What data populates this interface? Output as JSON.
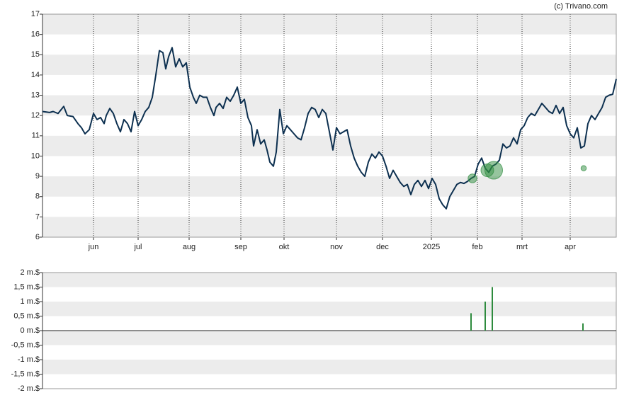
{
  "chart_data": [
    {
      "type": "line",
      "source": "(c) Trivano.com",
      "x": [
        60,
        70,
        75,
        82,
        90,
        95,
        103,
        110,
        115,
        120,
        126,
        132,
        137,
        142,
        147,
        150,
        155,
        160,
        165,
        170,
        175,
        180,
        185,
        190,
        195,
        200,
        205,
        210,
        215,
        220,
        225,
        230,
        234,
        238,
        243,
        248,
        253,
        258,
        263,
        268,
        273,
        277,
        282,
        287,
        292,
        297,
        302,
        305,
        310,
        315,
        320,
        325,
        330,
        335,
        340,
        345,
        350,
        355,
        358,
        363,
        368,
        373,
        377,
        381,
        386,
        390,
        395,
        400,
        405,
        410,
        415,
        420,
        425,
        430,
        435,
        440,
        445,
        450,
        455,
        460,
        465,
        470,
        475,
        480,
        485,
        490,
        495,
        500,
        505,
        510,
        515,
        520,
        525,
        530,
        535,
        540,
        545,
        550,
        555,
        560,
        565,
        570,
        575,
        580,
        585,
        590,
        595,
        600,
        605,
        610,
        615,
        620,
        625,
        630,
        635,
        640,
        645,
        650,
        655,
        660,
        665,
        670,
        675,
        680,
        685,
        690,
        695,
        700,
        705,
        710,
        715,
        720,
        725,
        730,
        735,
        740,
        745,
        750,
        755,
        760,
        765,
        770,
        775,
        780,
        785,
        790,
        795,
        800,
        805,
        810,
        815,
        820,
        825,
        830,
        835,
        840,
        845,
        850,
        855,
        860,
        865,
        870
      ],
      "series": [
        {
          "color": "#0d3050",
          "values": [
            12.2,
            12.15,
            12.2,
            12.1,
            12.45,
            12.0,
            11.95,
            11.6,
            11.4,
            11.1,
            11.3,
            12.1,
            11.8,
            11.9,
            11.6,
            12.0,
            12.35,
            12.1,
            11.6,
            11.2,
            11.8,
            11.6,
            11.2,
            12.2,
            11.5,
            11.8,
            12.2,
            12.4,
            12.9,
            14.0,
            15.2,
            15.1,
            14.3,
            14.9,
            15.35,
            14.4,
            14.8,
            14.4,
            14.6,
            13.4,
            12.9,
            12.6,
            13.0,
            12.9,
            12.9,
            12.4,
            12.0,
            12.4,
            12.6,
            12.35,
            12.9,
            12.7,
            13.0,
            13.4,
            12.6,
            12.8,
            11.9,
            11.5,
            10.5,
            11.3,
            10.6,
            10.8,
            10.3,
            9.7,
            9.5,
            10.2,
            12.3,
            11.1,
            11.5,
            11.3,
            11.1,
            10.9,
            10.8,
            11.4,
            12.1,
            12.4,
            12.3,
            11.9,
            12.3,
            12.1,
            11.2,
            10.3,
            11.4,
            11.1,
            11.2,
            11.3,
            10.5,
            9.9,
            9.5,
            9.2,
            9.0,
            9.7,
            10.1,
            9.9,
            10.2,
            10.0,
            9.5,
            8.9,
            9.3,
            9.0,
            8.7,
            8.5,
            8.6,
            8.1,
            8.6,
            8.8,
            8.5,
            8.8,
            8.4,
            8.9,
            8.6,
            7.9,
            7.6,
            7.4,
            8.0,
            8.3,
            8.6,
            8.7,
            8.65,
            8.75,
            8.9,
            9.0,
            9.6,
            9.9,
            9.4,
            9.2,
            9.5,
            9.6,
            9.8,
            10.6,
            10.4,
            10.5,
            10.9,
            10.6,
            11.3,
            11.5,
            11.9,
            12.1,
            12.0,
            12.3,
            12.6,
            12.4,
            12.2,
            12.1,
            12.5,
            12.1,
            12.4,
            11.5,
            11.1,
            10.9,
            11.4,
            10.4,
            10.5,
            11.6,
            12.0,
            11.8,
            12.1,
            12.4,
            12.9,
            13.0,
            13.05,
            13.8
          ]
        }
      ],
      "markers": {
        "color": "#2e8b3e",
        "x": [
          667,
          688,
          697,
          824
        ],
        "y": [
          8.9,
          9.3,
          9.3,
          9.4
        ],
        "size": [
          0.6,
          1.0,
          1.5,
          0.25
        ]
      },
      "xlim": [
        60,
        870
      ],
      "xticks": [
        {
          "value": 132,
          "label": "jun"
        },
        {
          "value": 195,
          "label": "jul"
        },
        {
          "value": 267,
          "label": "aug"
        },
        {
          "value": 340,
          "label": "sep"
        },
        {
          "value": 401,
          "label": "okt"
        },
        {
          "value": 475,
          "label": "nov"
        },
        {
          "value": 540,
          "label": "dec"
        },
        {
          "value": 609,
          "label": "2025"
        },
        {
          "value": 674,
          "label": "feb"
        },
        {
          "value": 737,
          "label": "mrt"
        },
        {
          "value": 805,
          "label": "apr"
        }
      ],
      "ylim": [
        6,
        17
      ],
      "yticks": [
        6,
        7,
        8,
        9,
        10,
        11,
        12,
        13,
        14,
        15,
        16,
        17
      ],
      "grid": true
    },
    {
      "type": "bar",
      "color": "#2e8b3e",
      "x": [
        665,
        685,
        695,
        823
      ],
      "values": [
        0.6,
        1.0,
        1.5,
        0.25
      ],
      "xlim": [
        60,
        870
      ],
      "ylim": [
        -2,
        2
      ],
      "yticks": [
        {
          "value": 2,
          "label": "2 m.$"
        },
        {
          "value": 1.5,
          "label": "1,5 m.$"
        },
        {
          "value": 1,
          "label": "1 m.$"
        },
        {
          "value": 0.5,
          "label": "0,5 m.$"
        },
        {
          "value": 0,
          "label": "0 m.$"
        },
        {
          "value": -0.5,
          "label": "-0,5 m.$"
        },
        {
          "value": -1,
          "label": "-1 m.$"
        },
        {
          "value": -1.5,
          "label": "-1,5 m.$"
        },
        {
          "value": -2,
          "label": "-2 m.$"
        }
      ],
      "grid": true
    }
  ]
}
